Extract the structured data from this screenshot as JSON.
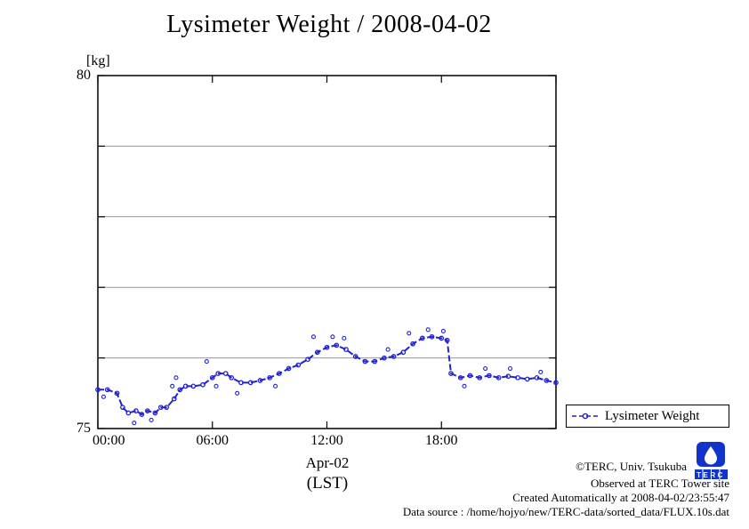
{
  "title": "Lysimeter Weight / 2008-04-02",
  "y_unit_label": "[kg]",
  "x_axis": {
    "date_label": "Apr-02",
    "tz_label": "(LST)"
  },
  "legend": {
    "label": "Lysimeter Weight"
  },
  "annotations": {
    "copyright": "©TERC, Univ. Tsukuba",
    "observed": "Observed at TERC Tower site",
    "created": "Created Automatically at 2008-04-02/23:55:47",
    "datasource": "Data source : /home/hojyo/new/TERC-data/sorted_data/FLUX.10s.dat"
  },
  "logo": {
    "text": "TERC",
    "color": "#1133cc"
  },
  "chart_data": {
    "type": "line",
    "title": "Lysimeter Weight / 2008-04-02",
    "xlabel": "Apr-02 (LST)",
    "ylabel": "[kg]",
    "xlim": [
      0,
      24
    ],
    "ylim": [
      75,
      80
    ],
    "xticks": [
      0,
      6,
      12,
      18,
      24
    ],
    "xtick_labels": [
      {
        "h": 0,
        "label": "00:00"
      },
      {
        "h": 6,
        "label": "06:00"
      },
      {
        "h": 12,
        "label": "12:00"
      },
      {
        "h": 18,
        "label": "18:00"
      }
    ],
    "yticks": [
      75,
      76,
      77,
      78,
      79,
      80
    ],
    "ytick_labels": [
      {
        "v": 80,
        "label": "80"
      },
      {
        "v": 75,
        "label": "75"
      }
    ],
    "ygrid": [
      76,
      77,
      78,
      79
    ],
    "grid": "horizontal-only",
    "legend_position": "outside-bottom-right",
    "line_color": "#2222cc",
    "line_style": "dashed-with-open-circles",
    "series": [
      {
        "name": "Lysimeter Weight",
        "x_unit": "hours (LST)",
        "y_unit": "kg",
        "points": [
          [
            0,
            75.55
          ],
          [
            0.5,
            75.55
          ],
          [
            1,
            75.5
          ],
          [
            1.3,
            75.3
          ],
          [
            1.6,
            75.22
          ],
          [
            2,
            75.25
          ],
          [
            2.3,
            75.2
          ],
          [
            2.6,
            75.25
          ],
          [
            3,
            75.22
          ],
          [
            3.3,
            75.3
          ],
          [
            3.6,
            75.3
          ],
          [
            4,
            75.42
          ],
          [
            4.3,
            75.55
          ],
          [
            4.6,
            75.6
          ],
          [
            5,
            75.6
          ],
          [
            5.5,
            75.62
          ],
          [
            6,
            75.72
          ],
          [
            6.3,
            75.78
          ],
          [
            6.7,
            75.78
          ],
          [
            7,
            75.72
          ],
          [
            7.5,
            75.65
          ],
          [
            8,
            75.65
          ],
          [
            8.5,
            75.68
          ],
          [
            9,
            75.72
          ],
          [
            9.5,
            75.78
          ],
          [
            10,
            75.85
          ],
          [
            10.5,
            75.9
          ],
          [
            11,
            75.98
          ],
          [
            11.5,
            76.08
          ],
          [
            12,
            76.15
          ],
          [
            12.5,
            76.18
          ],
          [
            13,
            76.12
          ],
          [
            13.5,
            76.02
          ],
          [
            14,
            75.95
          ],
          [
            14.5,
            75.95
          ],
          [
            15,
            76.0
          ],
          [
            15.5,
            76.02
          ],
          [
            16,
            76.08
          ],
          [
            16.5,
            76.2
          ],
          [
            17,
            76.28
          ],
          [
            17.5,
            76.3
          ],
          [
            18,
            76.28
          ],
          [
            18.3,
            76.25
          ],
          [
            18.5,
            75.78
          ],
          [
            19,
            75.72
          ],
          [
            19.5,
            75.75
          ],
          [
            20,
            75.72
          ],
          [
            20.5,
            75.75
          ],
          [
            21,
            75.72
          ],
          [
            21.5,
            75.74
          ],
          [
            22,
            75.72
          ],
          [
            22.5,
            75.7
          ],
          [
            23,
            75.72
          ],
          [
            23.5,
            75.68
          ],
          [
            24,
            75.65
          ]
        ],
        "outliers": [
          [
            0.3,
            75.45
          ],
          [
            1.9,
            75.08
          ],
          [
            2.8,
            75.12
          ],
          [
            3.9,
            75.6
          ],
          [
            4.1,
            75.72
          ],
          [
            5.7,
            75.95
          ],
          [
            6.2,
            75.6
          ],
          [
            7.3,
            75.5
          ],
          [
            9.3,
            75.6
          ],
          [
            11.3,
            76.3
          ],
          [
            12.3,
            76.3
          ],
          [
            12.9,
            76.28
          ],
          [
            15.2,
            76.12
          ],
          [
            16.3,
            76.35
          ],
          [
            17.3,
            76.4
          ],
          [
            18.1,
            76.38
          ],
          [
            19.2,
            75.6
          ],
          [
            20.3,
            75.85
          ],
          [
            21.6,
            75.85
          ],
          [
            23.2,
            75.8
          ]
        ]
      }
    ]
  }
}
